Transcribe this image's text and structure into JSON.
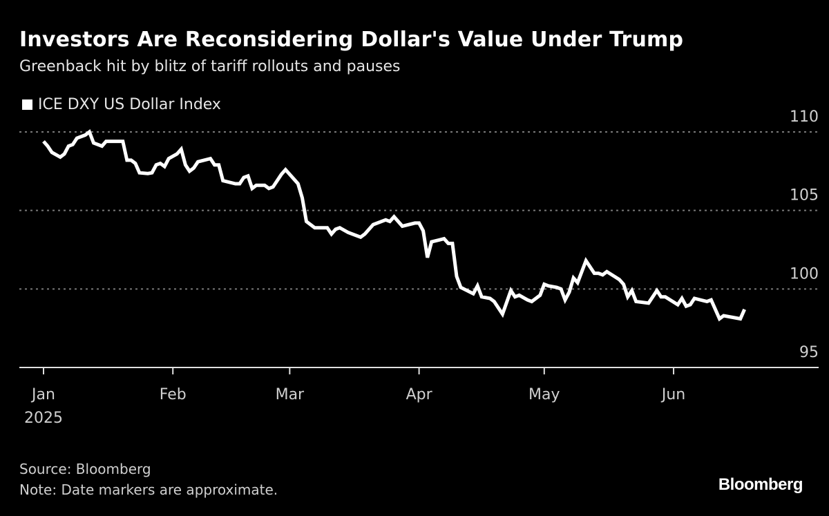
{
  "chart_data": {
    "type": "line",
    "title": "Investors Are Reconsidering Dollar's Value Under Trump",
    "subtitle": "Greenback hit by blitz of tariff rollouts and pauses",
    "legend": {
      "placement": "top-left",
      "entries": [
        "ICE DXY US Dollar Index"
      ]
    },
    "xlabel": "",
    "ylabel": "",
    "ylim": [
      95,
      110
    ],
    "yticks": [
      95,
      100,
      105,
      110
    ],
    "y_axis_side": "right",
    "grid": "horizontal dotted",
    "xticks": [
      {
        "date": "2025-01-01",
        "label": "Jan",
        "sublabel": "2025"
      },
      {
        "date": "2025-02-01",
        "label": "Feb"
      },
      {
        "date": "2025-03-01",
        "label": "Mar"
      },
      {
        "date": "2025-04-01",
        "label": "Apr"
      },
      {
        "date": "2025-05-01",
        "label": "May"
      },
      {
        "date": "2025-06-01",
        "label": "Jun"
      }
    ],
    "colors": {
      "background": "#000000",
      "line": "#ffffff",
      "grid": "#7a7a7a"
    },
    "series": [
      {
        "name": "ICE DXY US Dollar Index",
        "x": [
          "2025-01-01",
          "2025-01-02",
          "2025-01-03",
          "2025-01-05",
          "2025-01-06",
          "2025-01-07",
          "2025-01-08",
          "2025-01-09",
          "2025-01-11",
          "2025-01-12",
          "2025-01-13",
          "2025-01-15",
          "2025-01-16",
          "2025-01-18",
          "2025-01-20",
          "2025-01-21",
          "2025-01-22",
          "2025-01-23",
          "2025-01-24",
          "2025-01-26",
          "2025-01-27",
          "2025-01-28",
          "2025-01-29",
          "2025-01-30",
          "2025-01-31",
          "2025-02-02",
          "2025-02-03",
          "2025-02-04",
          "2025-02-05",
          "2025-02-06",
          "2025-02-07",
          "2025-02-10",
          "2025-02-11",
          "2025-02-12",
          "2025-02-13",
          "2025-02-16",
          "2025-02-17",
          "2025-02-18",
          "2025-02-19",
          "2025-02-20",
          "2025-02-21",
          "2025-02-23",
          "2025-02-24",
          "2025-02-25",
          "2025-02-27",
          "2025-02-28",
          "2025-03-02",
          "2025-03-03",
          "2025-03-04",
          "2025-03-05",
          "2025-03-07",
          "2025-03-08",
          "2025-03-10",
          "2025-03-11",
          "2025-03-12",
          "2025-03-13",
          "2025-03-15",
          "2025-03-18",
          "2025-03-19",
          "2025-03-21",
          "2025-03-24",
          "2025-03-25",
          "2025-03-26",
          "2025-03-28",
          "2025-03-31",
          "2025-04-01",
          "2025-04-02",
          "2025-04-03",
          "2025-04-04",
          "2025-04-07",
          "2025-04-08",
          "2025-04-09",
          "2025-04-10",
          "2025-04-11",
          "2025-04-14",
          "2025-04-15",
          "2025-04-16",
          "2025-04-18",
          "2025-04-19",
          "2025-04-21",
          "2025-04-23",
          "2025-04-24",
          "2025-04-25",
          "2025-04-27",
          "2025-04-28",
          "2025-04-30",
          "2025-05-01",
          "2025-05-02",
          "2025-05-04",
          "2025-05-05",
          "2025-05-06",
          "2025-05-07",
          "2025-05-08",
          "2025-05-09",
          "2025-05-11",
          "2025-05-13",
          "2025-05-14",
          "2025-05-15",
          "2025-05-16",
          "2025-05-19",
          "2025-05-20",
          "2025-05-21",
          "2025-05-22",
          "2025-05-23",
          "2025-05-26",
          "2025-05-28",
          "2025-05-29",
          "2025-05-30",
          "2025-06-02",
          "2025-06-03",
          "2025-06-04",
          "2025-06-05",
          "2025-06-06",
          "2025-06-09",
          "2025-06-10",
          "2025-06-12",
          "2025-06-13",
          "2025-06-17",
          "2025-06-18"
        ],
        "values": [
          109.4,
          109.1,
          108.7,
          108.4,
          108.6,
          109.1,
          109.2,
          109.6,
          109.8,
          110.0,
          109.3,
          109.1,
          109.4,
          109.4,
          109.4,
          108.2,
          108.2,
          108.0,
          107.4,
          107.35,
          107.4,
          107.9,
          108.0,
          107.8,
          108.3,
          108.6,
          108.9,
          107.9,
          107.5,
          107.7,
          108.1,
          108.3,
          107.9,
          107.9,
          106.9,
          106.7,
          106.7,
          107.1,
          107.2,
          106.4,
          106.6,
          106.6,
          106.4,
          106.5,
          107.3,
          107.6,
          107.0,
          106.7,
          105.8,
          104.3,
          103.9,
          103.9,
          103.9,
          103.5,
          103.8,
          103.9,
          103.6,
          103.3,
          103.5,
          104.1,
          104.4,
          104.3,
          104.6,
          104.0,
          104.2,
          104.2,
          103.7,
          102.0,
          103.0,
          103.2,
          102.9,
          102.9,
          100.8,
          100.1,
          99.7,
          100.2,
          99.5,
          99.4,
          99.2,
          98.4,
          99.9,
          99.5,
          99.6,
          99.3,
          99.2,
          99.6,
          100.3,
          100.2,
          100.1,
          100.0,
          99.3,
          99.8,
          100.7,
          100.4,
          101.8,
          101.0,
          101.0,
          100.9,
          101.1,
          100.6,
          100.3,
          99.5,
          99.9,
          99.2,
          99.1,
          99.9,
          99.5,
          99.5,
          99.0,
          99.4,
          98.9,
          99.0,
          99.4,
          99.2,
          99.3,
          98.1,
          98.3,
          98.1,
          98.7
        ]
      }
    ]
  },
  "footer": {
    "source": "Source: Bloomberg",
    "note": "Note: Date markers are approximate.",
    "logo": "Bloomberg"
  }
}
